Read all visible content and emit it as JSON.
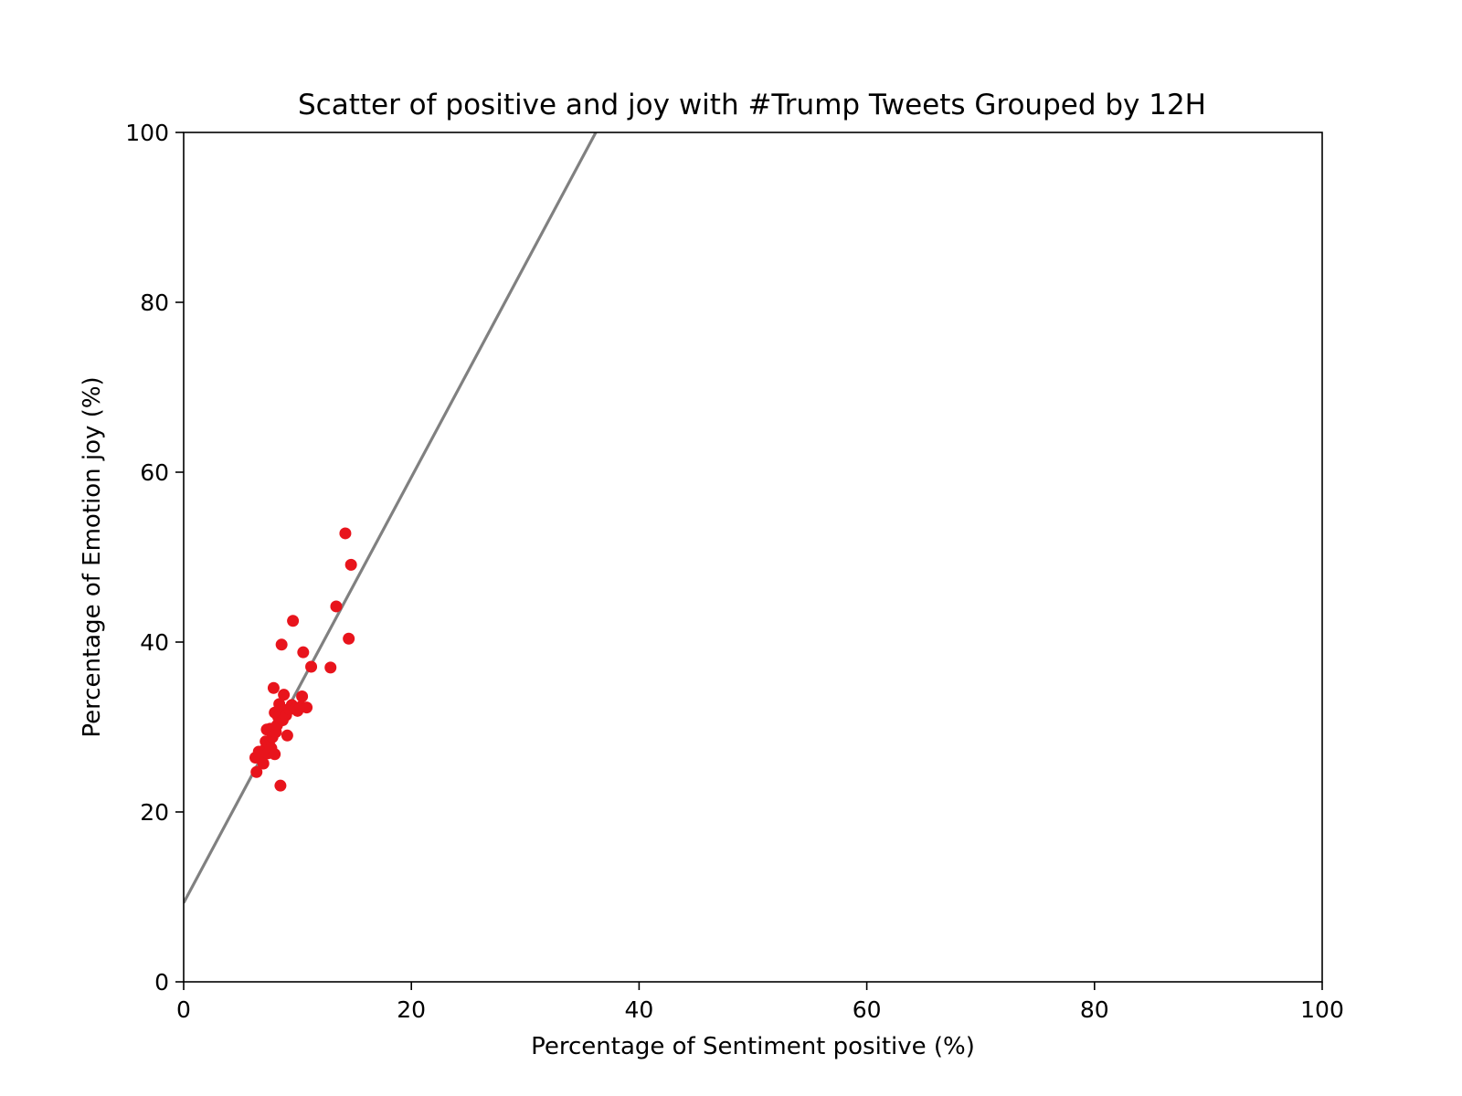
{
  "chart_data": {
    "type": "scatter",
    "title": "Scatter of positive and joy with #Trump Tweets Grouped by 12H",
    "xlabel": "Percentage of Sentiment positive (%)",
    "ylabel": "Percentage of Emotion joy (%)",
    "xlim": [
      0,
      100
    ],
    "ylim": [
      0,
      100
    ],
    "xticks": [
      0,
      20,
      40,
      60,
      80,
      100
    ],
    "yticks": [
      0,
      20,
      40,
      60,
      80,
      100
    ],
    "grid": false,
    "series": [
      {
        "color": "#e8141c",
        "points": [
          [
            6.3,
            26.4
          ],
          [
            6.4,
            24.7
          ],
          [
            6.6,
            27.1
          ],
          [
            6.8,
            26.2
          ],
          [
            7.0,
            25.7
          ],
          [
            7.1,
            27.3
          ],
          [
            7.2,
            28.3
          ],
          [
            7.3,
            29.7
          ],
          [
            7.4,
            26.9
          ],
          [
            7.5,
            28.0
          ],
          [
            7.6,
            29.8
          ],
          [
            7.7,
            27.5
          ],
          [
            7.8,
            28.8
          ],
          [
            7.9,
            34.6
          ],
          [
            8.0,
            26.8
          ],
          [
            8.0,
            31.7
          ],
          [
            8.1,
            29.4
          ],
          [
            8.2,
            30.2
          ],
          [
            8.3,
            31.2
          ],
          [
            8.4,
            32.7
          ],
          [
            8.5,
            23.1
          ],
          [
            8.6,
            39.7
          ],
          [
            8.7,
            30.8
          ],
          [
            8.8,
            33.8
          ],
          [
            8.9,
            32.0
          ],
          [
            9.0,
            31.4
          ],
          [
            9.1,
            29.0
          ],
          [
            9.3,
            32.1
          ],
          [
            9.5,
            32.6
          ],
          [
            9.6,
            42.5
          ],
          [
            9.8,
            32.2
          ],
          [
            10.0,
            31.9
          ],
          [
            10.3,
            32.4
          ],
          [
            10.4,
            33.6
          ],
          [
            10.5,
            38.8
          ],
          [
            10.8,
            32.3
          ],
          [
            11.2,
            37.1
          ],
          [
            12.9,
            37.0
          ],
          [
            13.4,
            44.2
          ],
          [
            14.2,
            52.8
          ],
          [
            14.5,
            40.4
          ],
          [
            14.7,
            49.1
          ]
        ]
      }
    ],
    "trendline": {
      "color": "#808080",
      "x": [
        0,
        36.2
      ],
      "y": [
        9.3,
        100
      ]
    }
  }
}
